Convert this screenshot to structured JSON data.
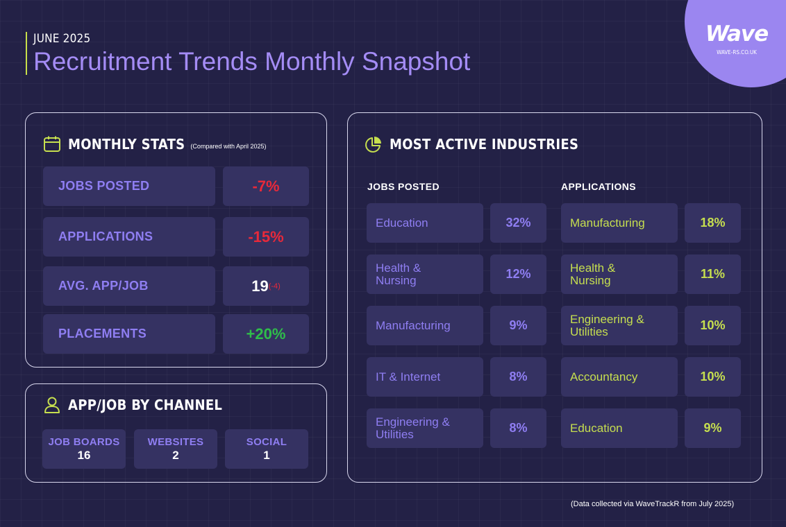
{
  "header": {
    "month": "JUNE 2025",
    "title": "Recruitment Trends Monthly Snapshot"
  },
  "logo": {
    "name": "Wave",
    "url": "WAVE-RS.CO.UK"
  },
  "monthly_stats": {
    "title": "MONTHLY STATS",
    "note": "(Compared with April 2025)",
    "rows": [
      {
        "label": "JOBS POSTED",
        "value": "-7%"
      },
      {
        "label": "APPLICATIONS",
        "value": "-15%"
      },
      {
        "label": "AVG. APP/JOB",
        "value": "19",
        "change": "(-4)"
      },
      {
        "label": "PLACEMENTS",
        "value": "+20%"
      }
    ]
  },
  "channel": {
    "title": "APP/JOB BY CHANNEL",
    "items": [
      {
        "label": "JOB BOARDS",
        "value": "16"
      },
      {
        "label": "WEBSITES",
        "value": "2"
      },
      {
        "label": "SOCIAL",
        "value": "1"
      }
    ]
  },
  "industries": {
    "title": "MOST ACTIVE INDUSTRIES",
    "jobs_posted": {
      "heading": "JOBS POSTED",
      "rows": [
        {
          "name": "Education",
          "pct": "32%"
        },
        {
          "name": "Health & Nursing",
          "pct": "12%"
        },
        {
          "name": "Manufacturing",
          "pct": "9%"
        },
        {
          "name": "IT & Internet",
          "pct": "8%"
        },
        {
          "name": "Engineering & Utilities",
          "pct": "8%"
        }
      ]
    },
    "applications": {
      "heading": "APPLICATIONS",
      "rows": [
        {
          "name": "Manufacturing",
          "pct": "18%"
        },
        {
          "name": "Health & Nursing",
          "pct": "11%"
        },
        {
          "name": "Engineering & Utilities",
          "pct": "10%"
        },
        {
          "name": "Accountancy",
          "pct": "10%"
        },
        {
          "name": "Education",
          "pct": "9%"
        }
      ]
    }
  },
  "footer": {
    "note": "(Data collected via WaveTrackR from July 2025)"
  },
  "colors": {
    "background": "#232146",
    "tile": "#353262",
    "accent_purple": "#8f7ef2",
    "accent_lime": "#c6df4f",
    "negative": "#e8293a",
    "positive": "#2fbe4a",
    "logo_circle": "#9b86f0"
  },
  "icons": {
    "monthly_stats": "calendar-icon",
    "channel": "user-icon",
    "industries": "pie-chart-icon"
  }
}
